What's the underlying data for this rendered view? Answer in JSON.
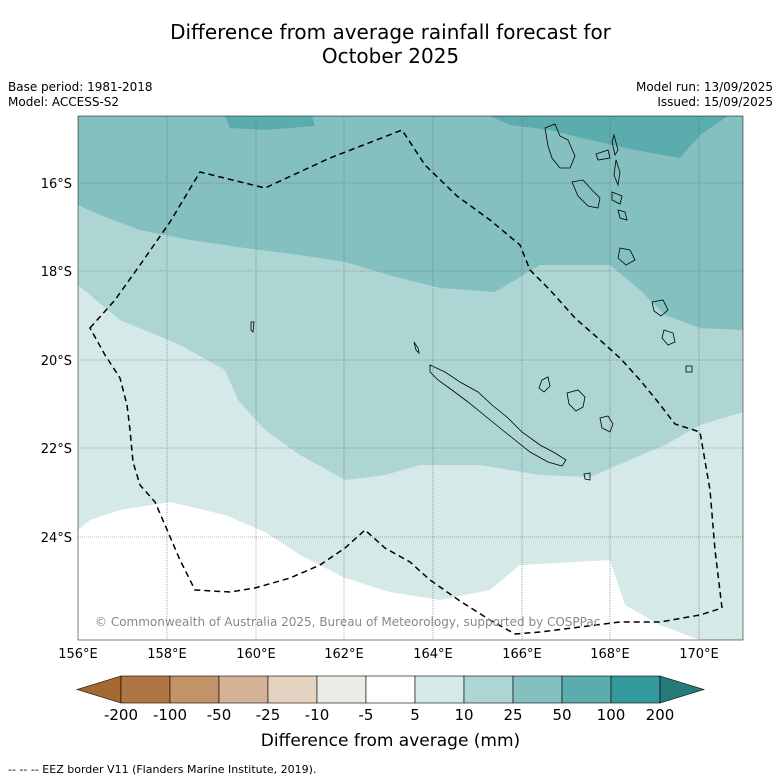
{
  "title_line1": "Difference from average rainfall forecast for",
  "title_line2": "October 2025",
  "base_period": "Base period: 1981-2018",
  "model": "Model: ACCESS-S2",
  "model_run": "Model run: 13/09/2025",
  "issued": "Issued: 15/09/2025",
  "copyright": "© Commonwealth of Australia 2025, Bureau of Meteorology, supported by COSPPac",
  "lat_labels": [
    "16°S",
    "18°S",
    "20°S",
    "22°S",
    "24°S"
  ],
  "lon_labels": [
    "156°E",
    "158°E",
    "160°E",
    "162°E",
    "164°E",
    "166°E",
    "168°E",
    "170°E"
  ],
  "colorbar": {
    "label": "Difference from average (mm)",
    "ticks": [
      "-200",
      "-100",
      "-50",
      "-25",
      "-10",
      "-5",
      "5",
      "10",
      "25",
      "50",
      "100",
      "200"
    ],
    "colors": [
      "#a5692f",
      "#b07542",
      "#c29268",
      "#d3b295",
      "#e5d3c1",
      "#ebebe8",
      "#ffffff",
      "#d5e9e8",
      "#acd5d4",
      "#83c0bf",
      "#5aadac",
      "#34999a",
      "#277a7a"
    ]
  },
  "footnote": "--  --  -- EEZ border V11 (Flanders Marine Institute, 2019)."
}
